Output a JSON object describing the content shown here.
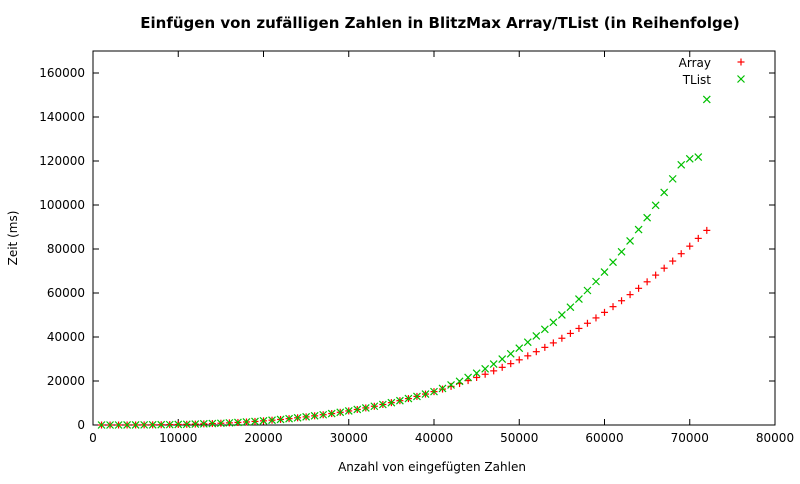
{
  "chart_data": {
    "type": "scatter",
    "title": "Einfügen von zufälligen Zahlen in BlitzMax Array/TList (in Reihenfolge)",
    "xlabel": "Anzahl von eingefügten Zahlen",
    "ylabel": "Zeit (ms)",
    "xlim": [
      0,
      80000
    ],
    "ylim": [
      0,
      170000
    ],
    "xticks": [
      0,
      10000,
      20000,
      30000,
      40000,
      50000,
      60000,
      70000,
      80000
    ],
    "yticks": [
      0,
      20000,
      40000,
      60000,
      80000,
      100000,
      120000,
      140000,
      160000
    ],
    "grid": false,
    "legend": "top-right",
    "x_step": 1000,
    "x_start": 1000,
    "series": [
      {
        "name": "Array",
        "marker": "plus",
        "color": "#ff0000",
        "values": [
          0,
          2,
          6,
          15,
          30,
          51,
          81,
          121,
          173,
          237,
          315,
          410,
          521,
          650,
          800,
          971,
          1164,
          1382,
          1626,
          1896,
          2195,
          2524,
          2884,
          3276,
          3703,
          4166,
          4665,
          5203,
          5780,
          6399,
          7060,
          7766,
          8517,
          9315,
          10161,
          11057,
          12005,
          13005,
          14059,
          15168,
          16334,
          17559,
          18843,
          20189,
          21597,
          23069,
          24606,
          26210,
          27883,
          29625,
          31438,
          33324,
          35284,
          37319,
          39431,
          41621,
          43891,
          46242,
          48675,
          51192,
          53794,
          56484,
          59261,
          62128,
          65086,
          68137,
          71281,
          74520,
          77857,
          81291,
          84825,
          88460
        ]
      },
      {
        "name": "TList",
        "marker": "cross",
        "color": "#00c000",
        "values": [
          0,
          2,
          6,
          15,
          30,
          51,
          81,
          121,
          173,
          237,
          315,
          410,
          521,
          650,
          800,
          971,
          1164,
          1382,
          1626,
          1896,
          2195,
          2524,
          2884,
          3276,
          3703,
          4166,
          4665,
          5203,
          5780,
          6399,
          7060,
          7766,
          8517,
          9315,
          10161,
          11057,
          12005,
          13005,
          14059,
          15168,
          16626,
          18188,
          19855,
          21635,
          23530,
          25547,
          27689,
          29963,
          32375,
          34928,
          37628,
          40482,
          43495,
          46671,
          50018,
          53541,
          57247,
          61141,
          65229,
          69519,
          74015,
          78727,
          83659,
          88818,
          94212,
          99848,
          105731,
          111869,
          118273,
          121000,
          121800,
          148000
        ]
      }
    ]
  }
}
